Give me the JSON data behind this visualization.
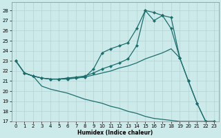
{
  "xlabel": "Humidex (Indice chaleur)",
  "bg_color": "#cdeaea",
  "grid_color": "#b8d8d8",
  "line_color": "#1a6e6e",
  "xlim": [
    -0.5,
    23.5
  ],
  "ylim": [
    17,
    28.8
  ],
  "yticks": [
    17,
    18,
    19,
    20,
    21,
    22,
    23,
    24,
    25,
    26,
    27,
    28
  ],
  "xticks": [
    0,
    1,
    2,
    3,
    4,
    5,
    6,
    7,
    8,
    9,
    10,
    11,
    12,
    13,
    14,
    15,
    16,
    17,
    18,
    19,
    20,
    21,
    22,
    23
  ],
  "line1_x": [
    0,
    1,
    2,
    3,
    4,
    5,
    6,
    7,
    8,
    9,
    10,
    11,
    12,
    13,
    14,
    15,
    16,
    17,
    18,
    19,
    20,
    21,
    22,
    23
  ],
  "line1_y": [
    23.0,
    21.8,
    21.5,
    21.3,
    21.2,
    21.2,
    21.2,
    21.3,
    21.4,
    22.2,
    23.8,
    24.2,
    24.5,
    24.8,
    26.2,
    28.0,
    27.8,
    27.5,
    26.2,
    23.3,
    21.0,
    18.8,
    17.0,
    17.0
  ],
  "line2_x": [
    0,
    1,
    2,
    3,
    4,
    5,
    6,
    7,
    8,
    9,
    10,
    11,
    12,
    13,
    14,
    15,
    16,
    17,
    18,
    19,
    20,
    21,
    22,
    23
  ],
  "line2_y": [
    23.0,
    21.8,
    21.5,
    21.3,
    21.2,
    21.2,
    21.3,
    21.4,
    21.5,
    21.8,
    22.2,
    22.5,
    22.8,
    23.2,
    24.5,
    28.0,
    27.0,
    27.5,
    27.3,
    23.3,
    21.0,
    18.8,
    17.0,
    17.0
  ],
  "line3_x": [
    0,
    1,
    2,
    3,
    4,
    5,
    6,
    7,
    8,
    9,
    10,
    11,
    12,
    13,
    14,
    15,
    16,
    17,
    18,
    19
  ],
  "line3_y": [
    23.0,
    21.8,
    21.5,
    21.3,
    21.2,
    21.2,
    21.3,
    21.3,
    21.4,
    21.6,
    21.8,
    22.0,
    22.3,
    22.5,
    22.8,
    23.2,
    23.5,
    23.8,
    24.2,
    23.3
  ],
  "line4_x": [
    1,
    2,
    3,
    4,
    5,
    6,
    7,
    8,
    9,
    10,
    11,
    12,
    13,
    14,
    15,
    16,
    17,
    18,
    19,
    20,
    21,
    22,
    23
  ],
  "line4_y": [
    21.8,
    21.5,
    20.5,
    20.2,
    20.0,
    19.8,
    19.5,
    19.2,
    19.0,
    18.8,
    18.5,
    18.3,
    18.0,
    17.8,
    17.5,
    17.3,
    17.2,
    17.1,
    17.0,
    17.0,
    17.0,
    17.0,
    17.0
  ]
}
